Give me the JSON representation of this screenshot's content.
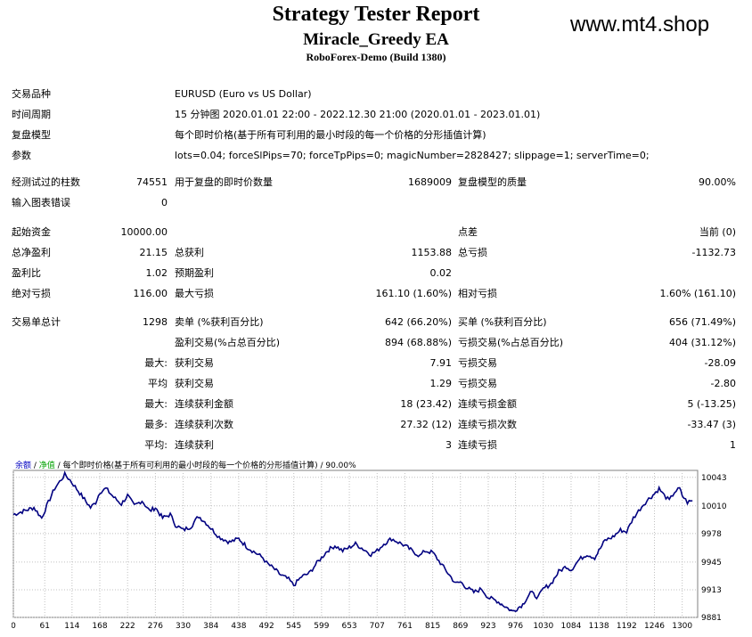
{
  "header": {
    "title": "Strategy Tester Report",
    "ea_name": "Miracle_Greedy EA",
    "server": "RoboForex-Demo (Build 1380)",
    "site": "www.mt4.shop"
  },
  "info": [
    {
      "label": "交易品种",
      "value": "EURUSD (Euro vs US Dollar)"
    },
    {
      "label": "时间周期",
      "value": "15 分钟图 2020.01.01 22:00 - 2022.12.30 21:00 (2020.01.01 - 2023.01.01)"
    },
    {
      "label": "复盘模型",
      "value": "每个即时价格(基于所有可利用的最小时段的每一个价格的分形插值计算)"
    },
    {
      "label": "参数",
      "value": "lots=0.04; forceSlPips=70; forceTpPips=0; magicNumber=2828427; slippage=1; serverTime=0;"
    }
  ],
  "stats": {
    "bars_label": "经测试过的柱数",
    "bars": "74551",
    "ticks_label": "用于复盘的即时价数量",
    "ticks": "1689009",
    "quality_label": "复盘模型的质量",
    "quality": "90.00%",
    "errors_label": "输入图表错误",
    "errors": "0",
    "deposit_label": "起始资金",
    "deposit": "10000.00",
    "spread_label": "点差",
    "spread": "当前 (0)",
    "net_label": "总净盈利",
    "net": "21.15",
    "gross_profit_label": "总获利",
    "gross_profit": "1153.88",
    "gross_loss_label": "总亏损",
    "gross_loss": "-1132.73",
    "pf_label": "盈利比",
    "pf": "1.02",
    "payoff_label": "预期盈利",
    "payoff": "0.02",
    "abs_dd_label": "绝对亏损",
    "abs_dd": "116.00",
    "max_dd_label": "最大亏损",
    "max_dd": "161.10 (1.60%)",
    "rel_dd_label": "相对亏损",
    "rel_dd": "1.60% (161.10)",
    "total_label": "交易单总计",
    "total": "1298",
    "short_label": "卖单 (%获利百分比)",
    "short": "642 (66.20%)",
    "long_label": "买单 (%获利百分比)",
    "long": "656 (71.49%)",
    "profit_trades_label": "盈利交易(%占总百分比)",
    "profit_trades": "894 (68.88%)",
    "loss_trades_label": "亏损交易(%占总百分比)",
    "loss_trades": "404 (31.12%)",
    "largest_prefix": "最大:",
    "largest_profit_label": "获利交易",
    "largest_profit": "7.91",
    "largest_loss_label": "亏损交易",
    "largest_loss": "-28.09",
    "average_prefix": "平均",
    "average_profit_label": "获利交易",
    "average_profit": "1.29",
    "average_loss_label": "亏损交易",
    "average_loss": "-2.80",
    "max_prefix": "最大:",
    "max_cons_wins_label": "连续获利金额",
    "max_cons_wins": "18 (23.42)",
    "max_cons_losses_label": "连续亏损金额",
    "max_cons_losses": "5 (-13.25)",
    "most_prefix": "最多:",
    "max_cons_profit_label": "连续获利次数",
    "max_cons_profit": "27.32 (12)",
    "max_cons_loss_label": "连续亏损次数",
    "max_cons_loss": "-33.47 (3)",
    "avg_cons_prefix": "平均:",
    "avg_cons_wins_label": "连续获利",
    "avg_cons_wins": "3",
    "avg_cons_losses_label": "连续亏损",
    "avg_cons_losses": "1"
  },
  "chart_data": {
    "type": "line",
    "caption": {
      "balance": "余额",
      "sep1": " / ",
      "equity": "净值",
      "sep2": " / ",
      "model": "每个即时价格(基于所有可利用的最小时段的每一个价格的分形插值计算)",
      "quality": " / 90.00%"
    },
    "x_ticks": [
      0,
      61,
      114,
      168,
      222,
      276,
      330,
      384,
      438,
      492,
      545,
      599,
      653,
      707,
      761,
      815,
      869,
      923,
      976,
      1030,
      1084,
      1138,
      1192,
      1246,
      1300
    ],
    "y_ticks": [
      10043,
      10010,
      9978,
      9945,
      9913,
      9881
    ],
    "ylim": [
      9881,
      10051
    ],
    "xlim": [
      0,
      1330
    ],
    "grid": true,
    "colors": {
      "line": "#000080",
      "grid": "#c0c0c0",
      "cap_balance": "#0000c0",
      "cap_equity": "#00a000"
    },
    "points": [
      [
        0,
        10000
      ],
      [
        20,
        10004
      ],
      [
        40,
        10008
      ],
      [
        55,
        9996
      ],
      [
        65,
        10010
      ],
      [
        80,
        10030
      ],
      [
        90,
        10038
      ],
      [
        100,
        10046
      ],
      [
        110,
        10040
      ],
      [
        120,
        10032
      ],
      [
        135,
        10020
      ],
      [
        150,
        10008
      ],
      [
        160,
        10014
      ],
      [
        168,
        10026
      ],
      [
        180,
        10030
      ],
      [
        195,
        10020
      ],
      [
        210,
        10012
      ],
      [
        222,
        10022
      ],
      [
        235,
        10010
      ],
      [
        250,
        10016
      ],
      [
        265,
        10004
      ],
      [
        276,
        10008
      ],
      [
        290,
        9996
      ],
      [
        305,
        10000
      ],
      [
        315,
        9988
      ],
      [
        330,
        9982
      ],
      [
        345,
        9986
      ],
      [
        360,
        9998
      ],
      [
        375,
        9990
      ],
      [
        384,
        9984
      ],
      [
        400,
        9974
      ],
      [
        420,
        9968
      ],
      [
        438,
        9972
      ],
      [
        455,
        9962
      ],
      [
        470,
        9956
      ],
      [
        485,
        9950
      ],
      [
        492,
        9944
      ],
      [
        505,
        9938
      ],
      [
        520,
        9930
      ],
      [
        535,
        9925
      ],
      [
        545,
        9918
      ],
      [
        560,
        9928
      ],
      [
        575,
        9932
      ],
      [
        590,
        9944
      ],
      [
        599,
        9950
      ],
      [
        610,
        9958
      ],
      [
        625,
        9964
      ],
      [
        640,
        9958
      ],
      [
        653,
        9962
      ],
      [
        665,
        9966
      ],
      [
        680,
        9960
      ],
      [
        695,
        9954
      ],
      [
        707,
        9958
      ],
      [
        720,
        9966
      ],
      [
        735,
        9972
      ],
      [
        748,
        9968
      ],
      [
        761,
        9964
      ],
      [
        775,
        9958
      ],
      [
        790,
        9952
      ],
      [
        800,
        9958
      ],
      [
        815,
        9956
      ],
      [
        830,
        9944
      ],
      [
        845,
        9932
      ],
      [
        860,
        9920
      ],
      [
        869,
        9922
      ],
      [
        880,
        9916
      ],
      [
        895,
        9910
      ],
      [
        910,
        9914
      ],
      [
        923,
        9904
      ],
      [
        940,
        9900
      ],
      [
        955,
        9894
      ],
      [
        970,
        9888
      ],
      [
        976,
        9890
      ],
      [
        990,
        9896
      ],
      [
        1005,
        9910
      ],
      [
        1020,
        9904
      ],
      [
        1030,
        9914
      ],
      [
        1045,
        9920
      ],
      [
        1060,
        9934
      ],
      [
        1075,
        9940
      ],
      [
        1084,
        9936
      ],
      [
        1100,
        9948
      ],
      [
        1115,
        9954
      ],
      [
        1130,
        9950
      ],
      [
        1138,
        9958
      ],
      [
        1150,
        9970
      ],
      [
        1165,
        9974
      ],
      [
        1180,
        9982
      ],
      [
        1192,
        9980
      ],
      [
        1205,
        9996
      ],
      [
        1215,
        10004
      ],
      [
        1225,
        10012
      ],
      [
        1235,
        10018
      ],
      [
        1246,
        10024
      ],
      [
        1255,
        10030
      ],
      [
        1265,
        10022
      ],
      [
        1275,
        10016
      ],
      [
        1285,
        10026
      ],
      [
        1295,
        10030
      ],
      [
        1300,
        10022
      ],
      [
        1310,
        10014
      ],
      [
        1320,
        10016
      ]
    ]
  }
}
